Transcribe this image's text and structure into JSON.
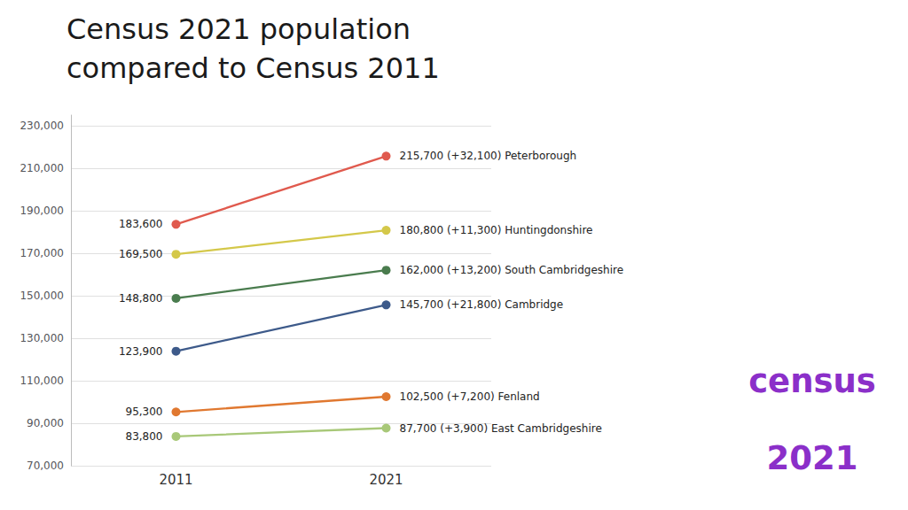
{
  "chart_data": {
    "type": "line",
    "title": "Census 2021 population",
    "subtitle": "compared to Census 2011",
    "categories": [
      "2011",
      "2021"
    ],
    "series": [
      {
        "name": "Peterborough",
        "color": "#e05a4e",
        "values": [
          183600,
          215700
        ],
        "value_labels": [
          "183,600",
          "215,700 (+32,100) Peterborough"
        ]
      },
      {
        "name": "Huntingdonshire",
        "color": "#d4c84a",
        "values": [
          169500,
          180800
        ],
        "value_labels": [
          "169,500",
          "180,800 (+11,300) Huntingdonshire"
        ]
      },
      {
        "name": "South Cambridgeshire",
        "color": "#4a7c4e",
        "values": [
          148800,
          162000
        ],
        "value_labels": [
          "148,800",
          "162,000 (+13,200) South Cambridgeshire"
        ]
      },
      {
        "name": "Cambridge",
        "color": "#3d5a8a",
        "values": [
          123900,
          145700
        ],
        "value_labels": [
          "123,900",
          "145,700 (+21,800) Cambridge"
        ]
      },
      {
        "name": "Fenland",
        "color": "#e07830",
        "values": [
          95300,
          102500
        ],
        "value_labels": [
          "95,300",
          "102,500 (+7,200) Fenland"
        ]
      },
      {
        "name": "East Cambridgeshire",
        "color": "#a8c878",
        "values": [
          83800,
          87700
        ],
        "value_labels": [
          "83,800",
          "87,700 (+3,900) East Cambridgeshire"
        ]
      }
    ],
    "ylim": [
      70000,
      235000
    ],
    "yticks": [
      {
        "value": 70000,
        "label": "70,000"
      },
      {
        "value": 90000,
        "label": "90,000"
      },
      {
        "value": 110000,
        "label": "110,000"
      },
      {
        "value": 130000,
        "label": "130,000"
      },
      {
        "value": 150000,
        "label": "150,000"
      },
      {
        "value": 170000,
        "label": "170,000"
      },
      {
        "value": 190000,
        "label": "190,000"
      },
      {
        "value": 210000,
        "label": "210,000"
      },
      {
        "value": 230000,
        "label": "230,000"
      }
    ],
    "grid": true,
    "data_labels": true,
    "marker": "circle",
    "annotations": [
      {
        "text": "census",
        "color": "#8b2fc9"
      },
      {
        "text": "2021",
        "color": "#8b2fc9"
      }
    ]
  }
}
